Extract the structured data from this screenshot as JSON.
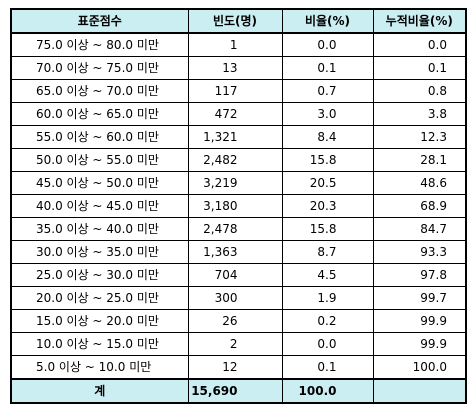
{
  "table": {
    "headers": [
      "표준점수",
      "빈도(명)",
      "비율(%)",
      "누적비율(%)"
    ],
    "rows": [
      {
        "range": "75.0 이상 ~ 80.0 미만",
        "freq": "1",
        "ratio": "0.0",
        "cum": "0.0"
      },
      {
        "range": "70.0 이상 ~ 75.0 미만",
        "freq": "13",
        "ratio": "0.1",
        "cum": "0.1"
      },
      {
        "range": "65.0 이상 ~ 70.0 미만",
        "freq": "117",
        "ratio": "0.7",
        "cum": "0.8"
      },
      {
        "range": "60.0 이상 ~ 65.0 미만",
        "freq": "472",
        "ratio": "3.0",
        "cum": "3.8"
      },
      {
        "range": "55.0 이상 ~ 60.0 미만",
        "freq": "1,321",
        "ratio": "8.4",
        "cum": "12.3"
      },
      {
        "range": "50.0 이상 ~ 55.0 미만",
        "freq": "2,482",
        "ratio": "15.8",
        "cum": "28.1"
      },
      {
        "range": "45.0 이상 ~ 50.0 미만",
        "freq": "3,219",
        "ratio": "20.5",
        "cum": "48.6"
      },
      {
        "range": "40.0 이상 ~ 45.0 미만",
        "freq": "3,180",
        "ratio": "20.3",
        "cum": "68.9"
      },
      {
        "range": "35.0 이상 ~ 40.0 미만",
        "freq": "2,478",
        "ratio": "15.8",
        "cum": "84.7"
      },
      {
        "range": "30.0 이상 ~ 35.0 미만",
        "freq": "1,363",
        "ratio": "8.7",
        "cum": "93.3"
      },
      {
        "range": "25.0 이상 ~ 30.0 미만",
        "freq": "704",
        "ratio": "4.5",
        "cum": "97.8"
      },
      {
        "range": "20.0 이상 ~ 25.0 미만",
        "freq": "300",
        "ratio": "1.9",
        "cum": "99.7"
      },
      {
        "range": "15.0 이상 ~ 20.0 미만",
        "freq": "26",
        "ratio": "0.2",
        "cum": "99.9"
      },
      {
        "range": "10.0 이상 ~ 15.0 미만",
        "freq": "2",
        "ratio": "0.0",
        "cum": "99.9"
      },
      {
        "range": "5.0 이상 ~ 10.0 미만",
        "freq": "12",
        "ratio": "0.1",
        "cum": "100.0"
      }
    ],
    "total": {
      "label": "계",
      "freq": "15,690",
      "ratio": "100.0",
      "cum": ""
    }
  },
  "colors": {
    "header_bg": "#cbeef3",
    "border": "#000000"
  }
}
